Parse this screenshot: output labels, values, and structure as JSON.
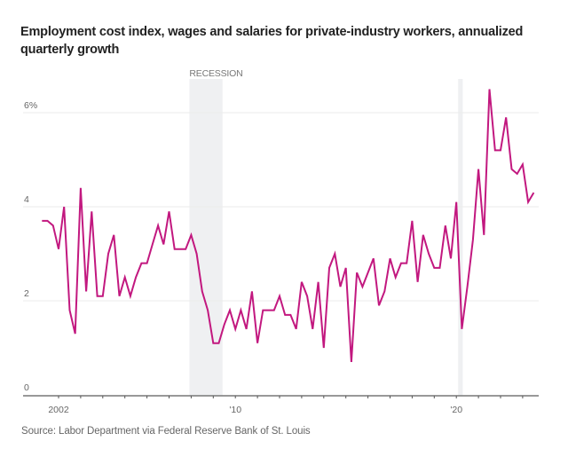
{
  "chart_data": {
    "type": "line",
    "title": "Employment cost index, wages and salaries for private-industry workers, annualized quarterly growth",
    "xlabel": "",
    "ylabel": "",
    "source": "Source: Labor Department via Federal Reserve Bank of St. Louis",
    "ylim": [
      0,
      6.6
    ],
    "xlim": [
      2000.6,
      2023.75
    ],
    "y_ticks": [
      {
        "value": 0,
        "label": "0"
      },
      {
        "value": 2,
        "label": "2"
      },
      {
        "value": 4,
        "label": "4"
      },
      {
        "value": 6,
        "label": "6%"
      }
    ],
    "x_ticks": [
      2002,
      2003,
      2004,
      2005,
      2006,
      2007,
      2008,
      2009,
      2010,
      2011,
      2012,
      2013,
      2014,
      2015,
      2016,
      2017,
      2018,
      2019,
      2020,
      2021,
      2022,
      2023
    ],
    "x_tick_labels": [
      {
        "value": 2002,
        "label": "2002"
      },
      {
        "value": 2010,
        "label": "'10"
      },
      {
        "value": 2020,
        "label": "'20"
      }
    ],
    "grid": true,
    "recessions": [
      {
        "label": "RECESSION",
        "start": 2007.92,
        "end": 2009.42
      },
      {
        "label": "",
        "start": 2020.08,
        "end": 2020.29
      }
    ],
    "line_color": "#c2187f",
    "recession_color": "#eff0f2",
    "series": [
      {
        "name": "Annualized quarterly growth",
        "start": "2001-Q2",
        "x_start": 2001.25,
        "step": 0.25,
        "values": [
          3.7,
          3.7,
          3.6,
          3.1,
          4.0,
          1.8,
          1.3,
          4.4,
          2.2,
          3.9,
          2.1,
          2.1,
          3.0,
          3.4,
          2.1,
          2.5,
          2.1,
          2.5,
          2.8,
          2.8,
          3.2,
          3.6,
          3.2,
          3.9,
          3.1,
          3.1,
          3.1,
          3.4,
          3.0,
          2.2,
          1.8,
          1.1,
          1.1,
          1.5,
          1.8,
          1.4,
          1.8,
          1.4,
          2.2,
          1.1,
          1.8,
          1.8,
          1.8,
          2.1,
          1.7,
          1.7,
          1.4,
          2.4,
          2.1,
          1.4,
          2.4,
          1.0,
          2.7,
          3.0,
          2.3,
          2.7,
          0.7,
          2.6,
          2.3,
          2.6,
          2.9,
          1.9,
          2.2,
          2.9,
          2.5,
          2.8,
          2.8,
          3.7,
          2.4,
          3.4,
          3.0,
          2.7,
          2.7,
          3.6,
          2.9,
          4.1,
          1.4,
          2.3,
          3.3,
          4.8,
          3.4,
          6.5,
          5.2,
          5.2,
          5.9,
          4.8,
          4.7,
          4.9,
          4.1,
          4.3
        ]
      }
    ]
  }
}
